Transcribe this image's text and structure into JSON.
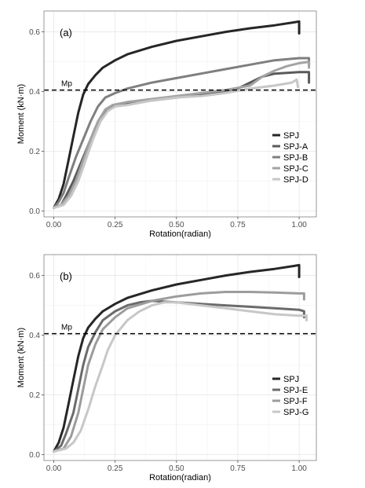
{
  "chart_data": [
    {
      "type": "line",
      "panel_label": "(a)",
      "xlabel": "Rotation(radian)",
      "ylabel": "Moment (kN·m)",
      "xlim": [
        -0.04,
        1.07
      ],
      "ylim": [
        -0.02,
        0.67
      ],
      "xticks": [
        "0.00",
        "0.25",
        "0.50",
        "0.75",
        "1.00"
      ],
      "xtick_values": [
        0,
        0.25,
        0.5,
        0.75,
        1.0
      ],
      "yticks": [
        "0.0",
        "0.2",
        "0.4",
        "0.6"
      ],
      "ytick_values": [
        0,
        0.2,
        0.4,
        0.6
      ],
      "grid": true,
      "legend_position": "right",
      "reference_line": {
        "label": "Mp",
        "y": 0.405,
        "style": "dashed"
      },
      "series": [
        {
          "name": "SPJ",
          "color": "#262626",
          "points": [
            [
              0,
              0.01
            ],
            [
              0.02,
              0.04
            ],
            [
              0.04,
              0.09
            ],
            [
              0.06,
              0.17
            ],
            [
              0.08,
              0.25
            ],
            [
              0.1,
              0.33
            ],
            [
              0.12,
              0.39
            ],
            [
              0.14,
              0.425
            ],
            [
              0.17,
              0.455
            ],
            [
              0.2,
              0.48
            ],
            [
              0.25,
              0.505
            ],
            [
              0.3,
              0.525
            ],
            [
              0.4,
              0.55
            ],
            [
              0.5,
              0.57
            ],
            [
              0.6,
              0.585
            ],
            [
              0.7,
              0.6
            ],
            [
              0.8,
              0.612
            ],
            [
              0.9,
              0.622
            ],
            [
              0.98,
              0.632
            ],
            [
              1.0,
              0.635
            ],
            [
              1.0,
              0.595
            ]
          ]
        },
        {
          "name": "SPJ-A",
          "color": "#5a5a5a",
          "points": [
            [
              0,
              0.01
            ],
            [
              0.03,
              0.02
            ],
            [
              0.05,
              0.05
            ],
            [
              0.08,
              0.1
            ],
            [
              0.11,
              0.16
            ],
            [
              0.14,
              0.22
            ],
            [
              0.17,
              0.28
            ],
            [
              0.2,
              0.32
            ],
            [
              0.23,
              0.345
            ],
            [
              0.26,
              0.355
            ],
            [
              0.3,
              0.36
            ],
            [
              0.4,
              0.37
            ],
            [
              0.5,
              0.38
            ],
            [
              0.6,
              0.39
            ],
            [
              0.7,
              0.4
            ],
            [
              0.75,
              0.41
            ],
            [
              0.8,
              0.43
            ],
            [
              0.85,
              0.45
            ],
            [
              0.9,
              0.46
            ],
            [
              1.0,
              0.465
            ],
            [
              1.04,
              0.465
            ],
            [
              1.04,
              0.43
            ]
          ]
        },
        {
          "name": "SPJ-B",
          "color": "#7f7f7f",
          "points": [
            [
              0,
              0.01
            ],
            [
              0.02,
              0.03
            ],
            [
              0.04,
              0.06
            ],
            [
              0.06,
              0.11
            ],
            [
              0.09,
              0.18
            ],
            [
              0.12,
              0.24
            ],
            [
              0.15,
              0.3
            ],
            [
              0.18,
              0.35
            ],
            [
              0.21,
              0.38
            ],
            [
              0.25,
              0.395
            ],
            [
              0.3,
              0.41
            ],
            [
              0.4,
              0.43
            ],
            [
              0.5,
              0.445
            ],
            [
              0.6,
              0.46
            ],
            [
              0.7,
              0.475
            ],
            [
              0.8,
              0.49
            ],
            [
              0.9,
              0.505
            ],
            [
              1.0,
              0.512
            ],
            [
              1.04,
              0.512
            ],
            [
              1.04,
              0.49
            ]
          ]
        },
        {
          "name": "SPJ-C",
          "color": "#a3a3a3",
          "points": [
            [
              0,
              0.01
            ],
            [
              0.03,
              0.02
            ],
            [
              0.06,
              0.05
            ],
            [
              0.09,
              0.1
            ],
            [
              0.12,
              0.17
            ],
            [
              0.15,
              0.24
            ],
            [
              0.18,
              0.3
            ],
            [
              0.21,
              0.34
            ],
            [
              0.24,
              0.355
            ],
            [
              0.3,
              0.365
            ],
            [
              0.4,
              0.375
            ],
            [
              0.5,
              0.385
            ],
            [
              0.6,
              0.395
            ],
            [
              0.7,
              0.405
            ],
            [
              0.8,
              0.42
            ],
            [
              0.85,
              0.45
            ],
            [
              0.9,
              0.47
            ],
            [
              0.95,
              0.485
            ],
            [
              1.0,
              0.495
            ],
            [
              1.04,
              0.5
            ],
            [
              1.04,
              0.48
            ]
          ]
        },
        {
          "name": "SPJ-D",
          "color": "#c7c7c7",
          "points": [
            [
              0,
              0.01
            ],
            [
              0.04,
              0.02
            ],
            [
              0.07,
              0.05
            ],
            [
              0.1,
              0.1
            ],
            [
              0.13,
              0.17
            ],
            [
              0.16,
              0.24
            ],
            [
              0.19,
              0.3
            ],
            [
              0.22,
              0.335
            ],
            [
              0.25,
              0.35
            ],
            [
              0.3,
              0.355
            ],
            [
              0.4,
              0.37
            ],
            [
              0.5,
              0.38
            ],
            [
              0.6,
              0.385
            ],
            [
              0.7,
              0.395
            ],
            [
              0.8,
              0.41
            ],
            [
              0.9,
              0.42
            ],
            [
              0.97,
              0.43
            ],
            [
              0.99,
              0.44
            ],
            [
              0.995,
              0.415
            ]
          ]
        }
      ]
    },
    {
      "type": "line",
      "panel_label": "(b)",
      "xlabel": "Rotation(radian)",
      "ylabel": "Moment (kN·m)",
      "xlim": [
        -0.04,
        1.07
      ],
      "ylim": [
        -0.02,
        0.67
      ],
      "xticks": [
        "0.00",
        "0.25",
        "0.50",
        "0.75",
        "1.00"
      ],
      "xtick_values": [
        0,
        0.25,
        0.5,
        0.75,
        1.0
      ],
      "yticks": [
        "0.0",
        "0.2",
        "0.4",
        "0.6"
      ],
      "ytick_values": [
        0,
        0.2,
        0.4,
        0.6
      ],
      "grid": true,
      "legend_position": "right",
      "reference_line": {
        "label": "Mp",
        "y": 0.405,
        "style": "dashed"
      },
      "series": [
        {
          "name": "SPJ",
          "color": "#262626",
          "points": [
            [
              0,
              0.01
            ],
            [
              0.02,
              0.04
            ],
            [
              0.04,
              0.09
            ],
            [
              0.06,
              0.17
            ],
            [
              0.08,
              0.25
            ],
            [
              0.1,
              0.33
            ],
            [
              0.12,
              0.39
            ],
            [
              0.14,
              0.425
            ],
            [
              0.17,
              0.455
            ],
            [
              0.2,
              0.48
            ],
            [
              0.25,
              0.505
            ],
            [
              0.3,
              0.525
            ],
            [
              0.4,
              0.55
            ],
            [
              0.5,
              0.57
            ],
            [
              0.6,
              0.585
            ],
            [
              0.7,
              0.6
            ],
            [
              0.8,
              0.612
            ],
            [
              0.9,
              0.622
            ],
            [
              0.98,
              0.632
            ],
            [
              1.0,
              0.635
            ],
            [
              1.0,
              0.595
            ]
          ]
        },
        {
          "name": "SPJ-E",
          "color": "#6b6b6b",
          "points": [
            [
              0,
              0.01
            ],
            [
              0.03,
              0.03
            ],
            [
              0.05,
              0.07
            ],
            [
              0.08,
              0.14
            ],
            [
              0.1,
              0.22
            ],
            [
              0.12,
              0.3
            ],
            [
              0.14,
              0.36
            ],
            [
              0.17,
              0.41
            ],
            [
              0.2,
              0.45
            ],
            [
              0.25,
              0.48
            ],
            [
              0.3,
              0.5
            ],
            [
              0.35,
              0.51
            ],
            [
              0.4,
              0.515
            ],
            [
              0.5,
              0.51
            ],
            [
              0.6,
              0.505
            ],
            [
              0.7,
              0.5
            ],
            [
              0.8,
              0.495
            ],
            [
              0.9,
              0.49
            ],
            [
              1.0,
              0.485
            ],
            [
              1.02,
              0.48
            ],
            [
              1.02,
              0.46
            ]
          ]
        },
        {
          "name": "SPJ-F",
          "color": "#9c9c9c",
          "points": [
            [
              0,
              0.01
            ],
            [
              0.04,
              0.02
            ],
            [
              0.07,
              0.06
            ],
            [
              0.1,
              0.14
            ],
            [
              0.12,
              0.22
            ],
            [
              0.14,
              0.3
            ],
            [
              0.17,
              0.37
            ],
            [
              0.2,
              0.42
            ],
            [
              0.25,
              0.46
            ],
            [
              0.3,
              0.49
            ],
            [
              0.4,
              0.515
            ],
            [
              0.5,
              0.53
            ],
            [
              0.6,
              0.54
            ],
            [
              0.7,
              0.545
            ],
            [
              0.8,
              0.545
            ],
            [
              0.9,
              0.543
            ],
            [
              1.0,
              0.54
            ],
            [
              1.02,
              0.54
            ],
            [
              1.02,
              0.52
            ]
          ]
        },
        {
          "name": "SPJ-G",
          "color": "#c7c7c7",
          "points": [
            [
              0,
              0.01
            ],
            [
              0.05,
              0.02
            ],
            [
              0.08,
              0.04
            ],
            [
              0.11,
              0.08
            ],
            [
              0.14,
              0.15
            ],
            [
              0.17,
              0.23
            ],
            [
              0.2,
              0.3
            ],
            [
              0.22,
              0.35
            ],
            [
              0.25,
              0.4
            ],
            [
              0.3,
              0.45
            ],
            [
              0.35,
              0.48
            ],
            [
              0.4,
              0.5
            ],
            [
              0.45,
              0.51
            ],
            [
              0.5,
              0.51
            ],
            [
              0.6,
              0.5
            ],
            [
              0.7,
              0.49
            ],
            [
              0.8,
              0.48
            ],
            [
              0.9,
              0.47
            ],
            [
              1.0,
              0.465
            ],
            [
              1.03,
              0.465
            ],
            [
              1.03,
              0.45
            ]
          ]
        }
      ]
    }
  ]
}
